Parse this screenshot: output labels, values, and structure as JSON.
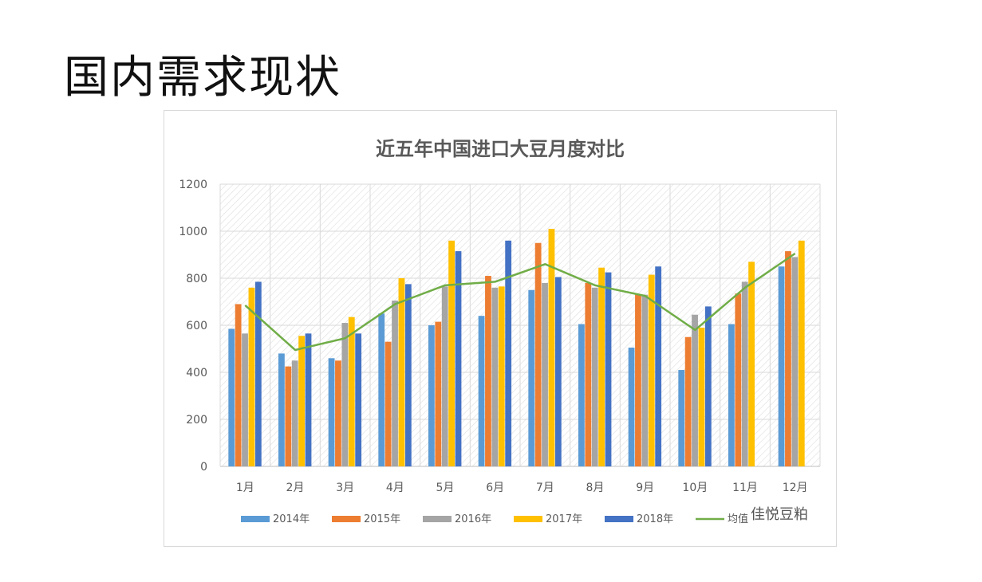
{
  "slide": {
    "title": "国内需求现状"
  },
  "watermark": "佳悦豆粕",
  "chart_data": {
    "type": "bar",
    "title": "近五年中国进口大豆月度对比",
    "categories": [
      "1月",
      "2月",
      "3月",
      "4月",
      "5月",
      "6月",
      "7月",
      "8月",
      "9月",
      "10月",
      "11月",
      "12月"
    ],
    "ylim": [
      0,
      1200
    ],
    "yticks": [
      0,
      200,
      400,
      600,
      800,
      1000,
      1200
    ],
    "grid": true,
    "legend_position": "bottom",
    "series": [
      {
        "name": "2014年",
        "type": "bar",
        "color": "#5b9bd5",
        "values": [
          585,
          480,
          460,
          650,
          600,
          640,
          750,
          605,
          505,
          410,
          605,
          850
        ]
      },
      {
        "name": "2015年",
        "type": "bar",
        "color": "#ed7d31",
        "values": [
          690,
          425,
          450,
          530,
          615,
          810,
          950,
          780,
          730,
          550,
          735,
          915
        ]
      },
      {
        "name": "2016年",
        "type": "bar",
        "color": "#a5a5a5",
        "values": [
          565,
          450,
          610,
          705,
          765,
          760,
          780,
          760,
          730,
          645,
          785,
          890
        ]
      },
      {
        "name": "2017年",
        "type": "bar",
        "color": "#ffc000",
        "values": [
          760,
          555,
          635,
          800,
          960,
          765,
          1010,
          845,
          815,
          590,
          870,
          960
        ]
      },
      {
        "name": "2018年",
        "type": "bar",
        "color": "#4472c4",
        "values": [
          785,
          565,
          565,
          775,
          915,
          960,
          805,
          825,
          850,
          680,
          null,
          null
        ]
      },
      {
        "name": "均值",
        "type": "line",
        "color": "#70ad47",
        "values": [
          685,
          495,
          545,
          690,
          770,
          785,
          860,
          770,
          725,
          580,
          760,
          905
        ]
      }
    ]
  }
}
